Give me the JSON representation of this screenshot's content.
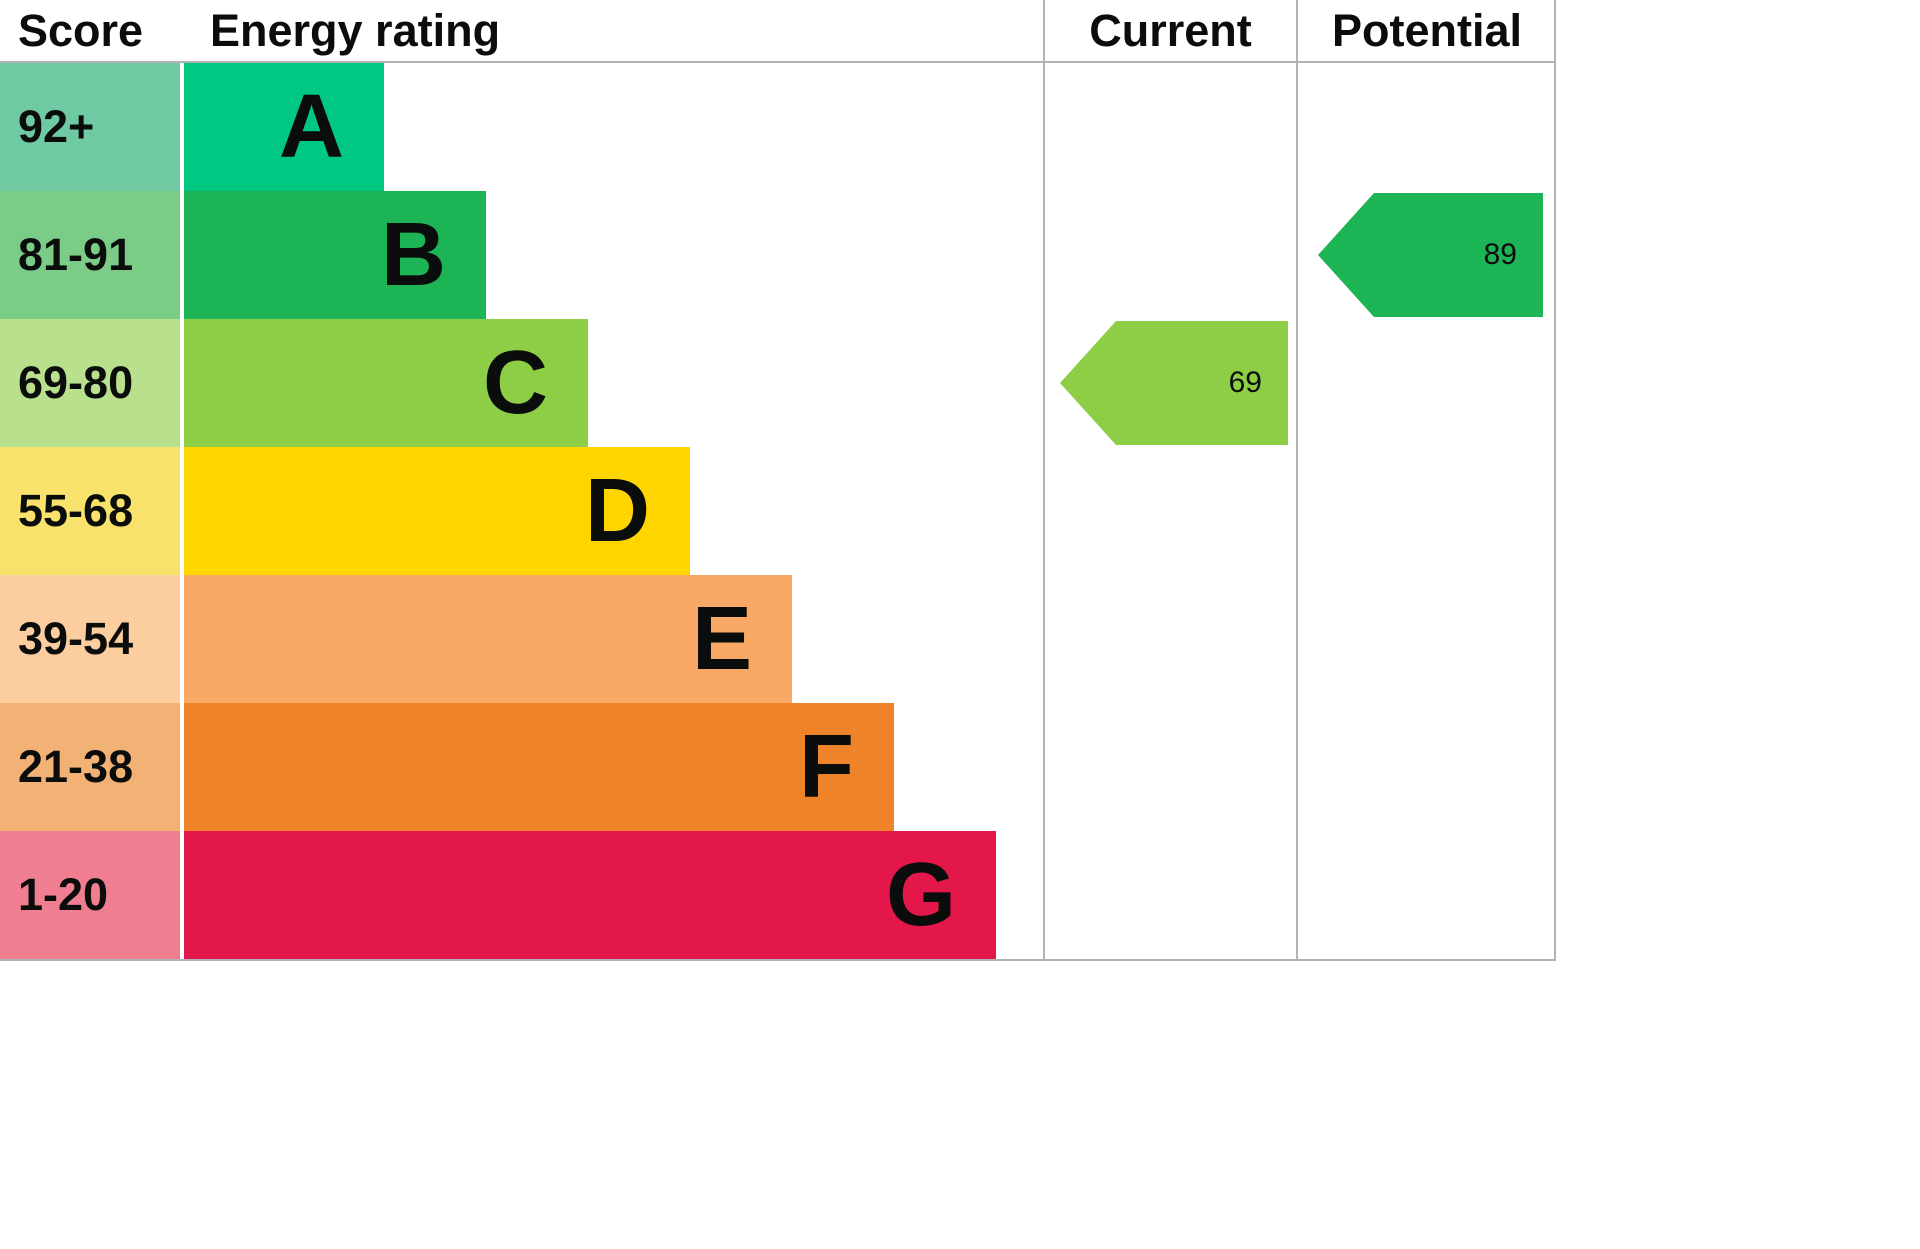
{
  "header": {
    "score": "Score",
    "energy_rating": "Energy rating",
    "current": "Current",
    "potential": "Potential"
  },
  "chart_data": {
    "type": "bar",
    "categories": [
      "A",
      "B",
      "C",
      "D",
      "E",
      "F",
      "G"
    ],
    "bands": [
      {
        "score_range": "92+",
        "letter": "A",
        "color": "#00c781",
        "score_color": "#6fc9a2"
      },
      {
        "score_range": "81-91",
        "letter": "B",
        "color": "#1cb454",
        "score_color": "#7bcc86"
      },
      {
        "score_range": "69-80",
        "letter": "C",
        "color": "#8dce46",
        "score_color": "#b9e08d"
      },
      {
        "score_range": "55-68",
        "letter": "D",
        "color": "#ffd500",
        "score_color": "#f8e26c"
      },
      {
        "score_range": "39-54",
        "letter": "E",
        "color": "#f9a965",
        "score_color": "#fccd9e"
      },
      {
        "score_range": "21-38",
        "letter": "F",
        "color": "#ee8329",
        "score_color": "#f3b275"
      },
      {
        "score_range": "1-20",
        "letter": "G",
        "color": "#e4174b",
        "score_color": "#ef7e90"
      }
    ],
    "current": {
      "value": 69,
      "band": "C",
      "color": "#8dce46"
    },
    "potential": {
      "value": 89,
      "band": "B",
      "color": "#1cb454"
    }
  }
}
